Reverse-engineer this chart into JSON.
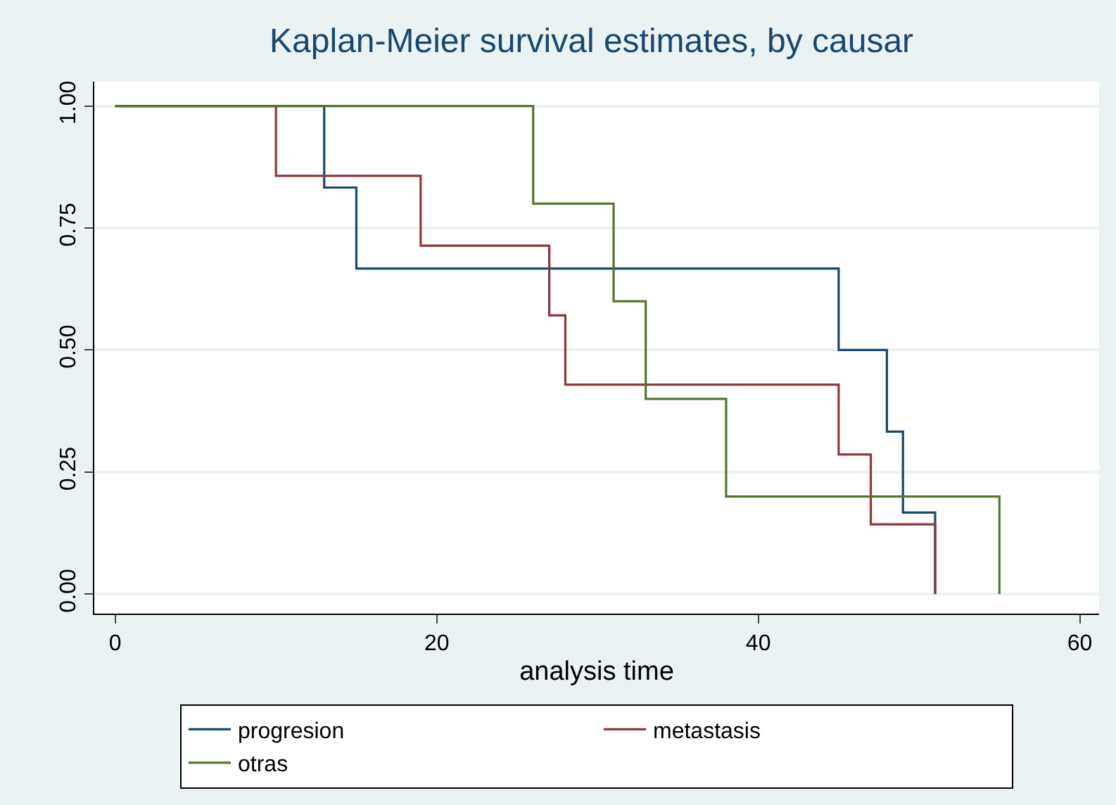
{
  "chart_data": {
    "type": "step",
    "title": "Kaplan-Meier survival estimates, by causar",
    "xlabel": "analysis time",
    "series": [
      {
        "name": "progresion",
        "color": "#1a476f",
        "x": [
          0,
          13,
          15,
          45,
          48,
          49,
          51
        ],
        "values": [
          1,
          0.833,
          0.667,
          0.5,
          0.333,
          0.167,
          0
        ]
      },
      {
        "name": "metastasis",
        "color": "#90353b",
        "x": [
          0,
          10,
          19,
          27,
          28,
          45,
          47,
          51
        ],
        "values": [
          1,
          0.857,
          0.714,
          0.571,
          0.429,
          0.286,
          0.143,
          0
        ]
      },
      {
        "name": "otras",
        "color": "#55752f",
        "x": [
          0,
          26,
          31,
          33,
          38,
          55
        ],
        "values": [
          1,
          0.8,
          0.6,
          0.4,
          0.2,
          0
        ]
      }
    ],
    "xlim": [
      -1.3,
      61.2
    ],
    "ylim": [
      -0.04,
      1.05
    ],
    "xticks": [
      0,
      20,
      40,
      60
    ],
    "yticks": [
      {
        "value": 0,
        "label": "0.00"
      },
      {
        "value": 0.25,
        "label": "0.25"
      },
      {
        "value": 0.5,
        "label": "0.50"
      },
      {
        "value": 0.75,
        "label": "0.75"
      },
      {
        "value": 1,
        "label": "1.00"
      }
    ],
    "grid": "y",
    "legend": "bottom",
    "marker": "none",
    "line_style": "solid"
  }
}
